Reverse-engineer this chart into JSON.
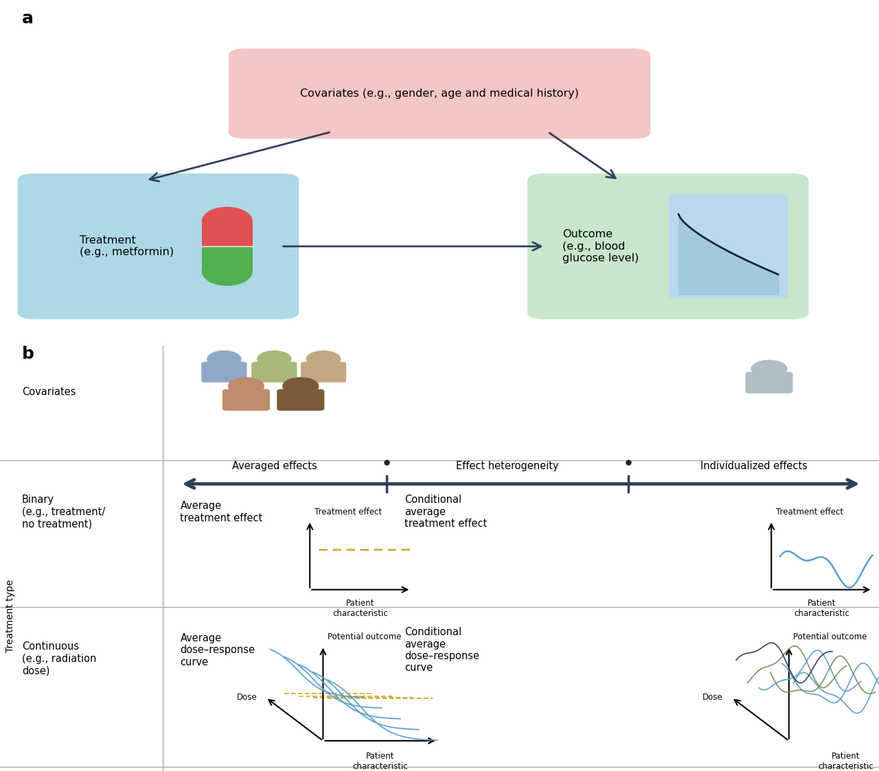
{
  "bg_color": "#ffffff",
  "arrow_color": "#2e3f5c",
  "panel_a": {
    "covariate_box": {
      "color": "#f5c6c6",
      "text": "Covariates (e.g., gender, age and medical history)"
    },
    "treatment_box": {
      "color": "#add8e6",
      "text": "Treatment\n(e.g., metformin)"
    },
    "outcome_box": {
      "color": "#c8e6c9",
      "text": "Outcome\n(e.g., blood\nglucose level)"
    }
  },
  "panel_b": {
    "grid_color": "#aaaaaa",
    "arrow_color": "#2e3f5c",
    "line_blue": "#5b9ec9",
    "line_gold": "#d4a520",
    "line_dark": "#2c3e50",
    "line_olive": "#7a8c5e",
    "person_colors_group": [
      "#8fa8c8",
      "#a8b87a",
      "#c4a882",
      "#bf8c6a",
      "#7a5a3a"
    ],
    "person_color_single": "#b0bec5"
  }
}
